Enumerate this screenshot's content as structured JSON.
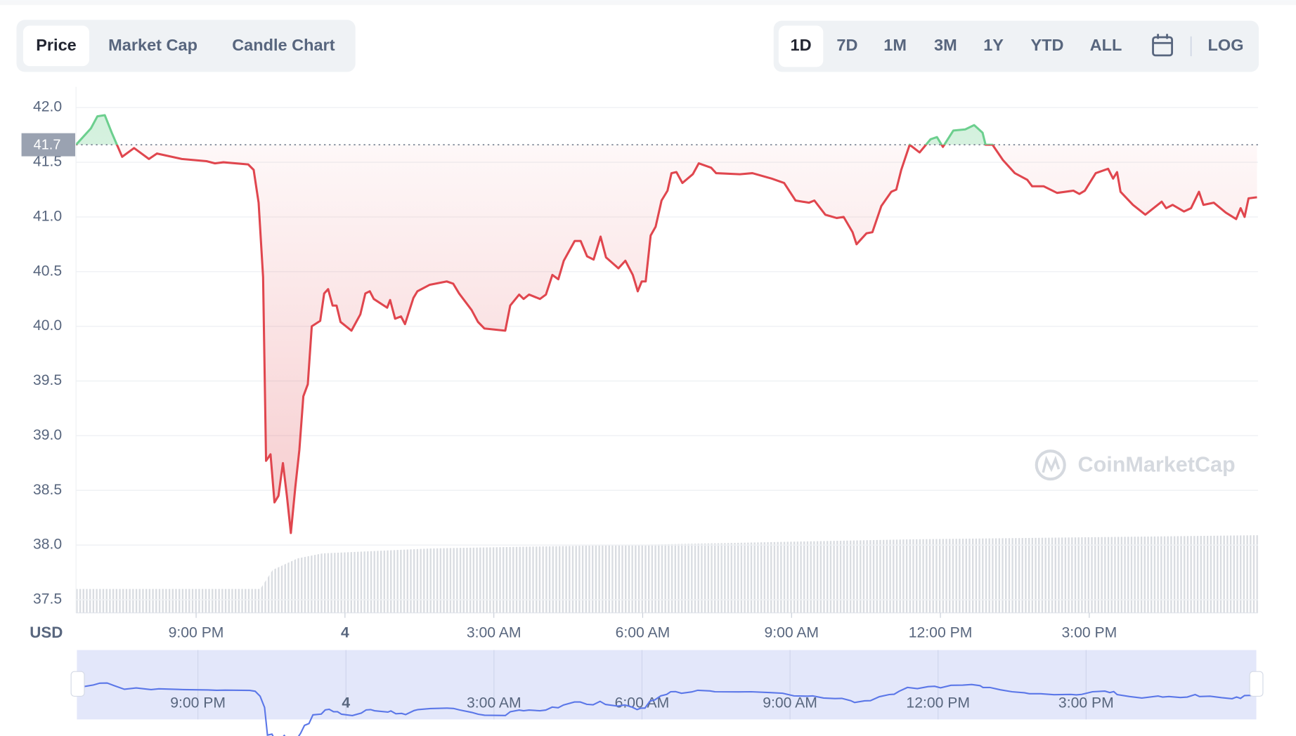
{
  "tabs": [
    "Price",
    "Market Cap",
    "Candle Chart"
  ],
  "ranges": [
    "1D",
    "7D",
    "1M",
    "3M",
    "1Y",
    "YTD",
    "ALL"
  ],
  "log": "LOG",
  "watermark": "CoinMarketCap",
  "chart_data": {
    "type": "line",
    "y_label": "USD",
    "color_up": "#6ccf8e",
    "color_down": "#e0464e",
    "grid": true,
    "reference": {
      "value": 41.66,
      "label": "41.7"
    },
    "xlim": [
      18.58,
      42.4
    ],
    "xticks": [
      {
        "value": 21,
        "label": "9:00 PM"
      },
      {
        "value": 24,
        "label": "4"
      },
      {
        "value": 27,
        "label": "3:00 AM"
      },
      {
        "value": 30,
        "label": "6:00 AM"
      },
      {
        "value": 33,
        "label": "9:00 AM"
      },
      {
        "value": 36,
        "label": "12:00 PM"
      },
      {
        "value": 39,
        "label": "3:00 PM"
      }
    ],
    "ylim": [
      37.38,
      42.19
    ],
    "yticks": [
      {
        "value": 42,
        "label": "42.0"
      },
      41.5,
      {
        "value": 41,
        "label": "41.0"
      },
      40.5,
      {
        "value": 40,
        "label": "40.0"
      },
      39.5,
      {
        "value": 39,
        "label": "39.0"
      },
      38.5,
      {
        "value": 38,
        "label": "38.0"
      },
      37.5
    ],
    "x": [
      18.58,
      18.88,
      19.01,
      19.16,
      19.3,
      19.51,
      19.75,
      20.05,
      20.21,
      20.71,
      21.21,
      21.38,
      21.55,
      22.05,
      22.16,
      22.26,
      22.35,
      22.41,
      22.5,
      22.58,
      22.66,
      22.75,
      22.83,
      22.91,
      23.0,
      23.08,
      23.16,
      23.25,
      23.33,
      23.5,
      23.58,
      23.66,
      23.75,
      23.83,
      23.91,
      24.13,
      24.31,
      24.41,
      24.5,
      24.58,
      24.85,
      24.91,
      25.01,
      25.13,
      25.21,
      25.38,
      25.46,
      25.71,
      26.05,
      26.18,
      26.3,
      26.55,
      26.68,
      26.81,
      27.23,
      27.33,
      27.51,
      27.6,
      27.71,
      27.93,
      28.05,
      28.18,
      28.3,
      28.41,
      28.63,
      28.75,
      28.88,
      29.01,
      29.15,
      29.26,
      29.51,
      29.65,
      29.8,
      29.9,
      29.98,
      30.06,
      30.16,
      30.26,
      30.38,
      30.5,
      30.58,
      30.68,
      30.8,
      31.01,
      31.13,
      31.38,
      31.48,
      31.96,
      32.21,
      32.6,
      32.85,
      33.08,
      33.35,
      33.46,
      33.68,
      33.91,
      34.05,
      34.23,
      34.31,
      34.51,
      34.63,
      34.81,
      35.01,
      35.11,
      35.21,
      35.38,
      35.58,
      35.8,
      35.93,
      36.05,
      36.26,
      36.5,
      36.68,
      36.85,
      36.91,
      37.05,
      37.26,
      37.5,
      37.75,
      37.85,
      38.08,
      38.35,
      38.68,
      38.8,
      38.91,
      39.13,
      39.38,
      39.48,
      39.56,
      39.63,
      39.88,
      40.13,
      40.46,
      40.55,
      40.68,
      40.91,
      41.05,
      41.21,
      41.3,
      41.51,
      41.75,
      41.96,
      42.05,
      42.13,
      42.21,
      42.38
    ],
    "values": [
      41.66,
      41.81,
      41.92,
      41.93,
      41.77,
      41.55,
      41.63,
      41.53,
      41.58,
      41.53,
      41.51,
      41.49,
      41.5,
      41.48,
      41.43,
      41.13,
      40.45,
      38.77,
      38.83,
      38.39,
      38.45,
      38.75,
      38.45,
      38.11,
      38.53,
      38.87,
      39.36,
      39.47,
      40.0,
      40.05,
      40.3,
      40.34,
      40.19,
      40.19,
      40.04,
      39.96,
      40.11,
      40.3,
      40.32,
      40.25,
      40.17,
      40.24,
      40.07,
      40.09,
      40.02,
      40.26,
      40.32,
      40.38,
      40.41,
      40.39,
      40.3,
      40.15,
      40.04,
      39.98,
      39.96,
      40.19,
      40.29,
      40.25,
      40.29,
      40.25,
      40.29,
      40.47,
      40.43,
      40.6,
      40.78,
      40.78,
      40.64,
      40.61,
      40.82,
      40.63,
      40.53,
      40.6,
      40.47,
      40.32,
      40.41,
      40.41,
      40.83,
      40.91,
      41.15,
      41.24,
      41.4,
      41.41,
      41.31,
      41.39,
      41.49,
      41.45,
      41.4,
      41.39,
      41.4,
      41.35,
      41.31,
      41.15,
      41.13,
      41.15,
      41.02,
      40.99,
      41.0,
      40.86,
      40.75,
      40.85,
      40.86,
      41.1,
      41.23,
      41.25,
      41.43,
      41.66,
      41.59,
      41.71,
      41.73,
      41.64,
      41.79,
      41.8,
      41.84,
      41.77,
      41.66,
      41.66,
      41.52,
      41.4,
      41.34,
      41.28,
      41.28,
      41.22,
      41.24,
      41.21,
      41.24,
      41.4,
      41.44,
      41.35,
      41.41,
      41.23,
      41.11,
      41.02,
      41.14,
      41.08,
      41.11,
      41.05,
      41.08,
      41.23,
      41.11,
      41.13,
      41.04,
      40.98,
      41.08,
      41.0,
      41.17,
      41.18
    ]
  }
}
